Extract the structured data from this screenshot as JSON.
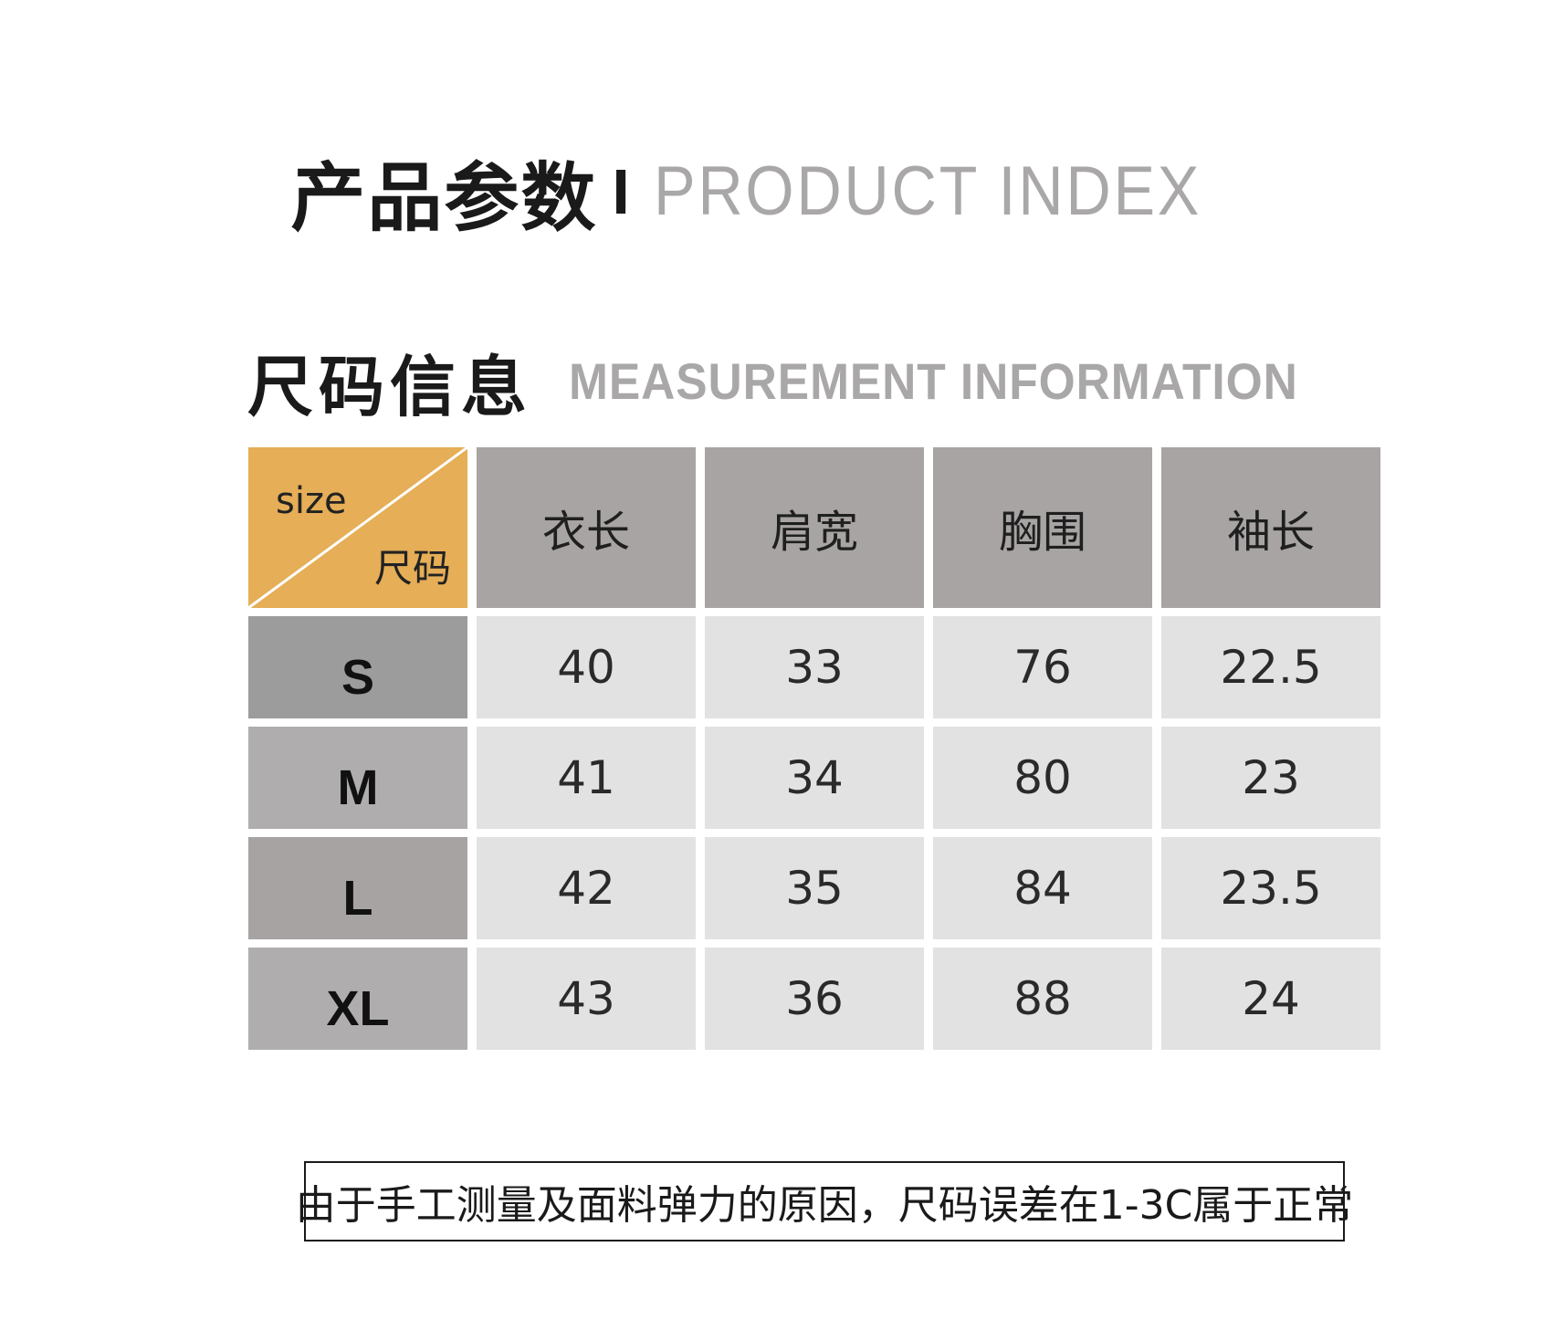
{
  "title": {
    "cn": "产品参数",
    "separator": "I",
    "en": "PRODUCT INDEX"
  },
  "section": {
    "cn": "尺码信息",
    "en": "MEASUREMENT INFORMATION"
  },
  "table": {
    "corner_top": "size",
    "corner_bottom": "尺码",
    "headers": [
      "衣长",
      "肩宽",
      "胸围",
      "袖长"
    ],
    "rows": [
      {
        "size": "S",
        "values": [
          "40",
          "33",
          "76",
          "22.5"
        ]
      },
      {
        "size": "M",
        "values": [
          "41",
          "34",
          "80",
          "23"
        ]
      },
      {
        "size": "L",
        "values": [
          "42",
          "35",
          "84",
          "23.5"
        ]
      },
      {
        "size": "XL",
        "values": [
          "43",
          "36",
          "88",
          "24"
        ]
      }
    ]
  },
  "note": "由于手工测量及面料弹力的原因，尺码误差在1-3C属于正常",
  "colors": {
    "corner_accent": "#e5ae57",
    "header_gray": "#a7a4a3",
    "cell_light": "#e2e2e2",
    "subtitle_gray": "#a9a7a7"
  }
}
